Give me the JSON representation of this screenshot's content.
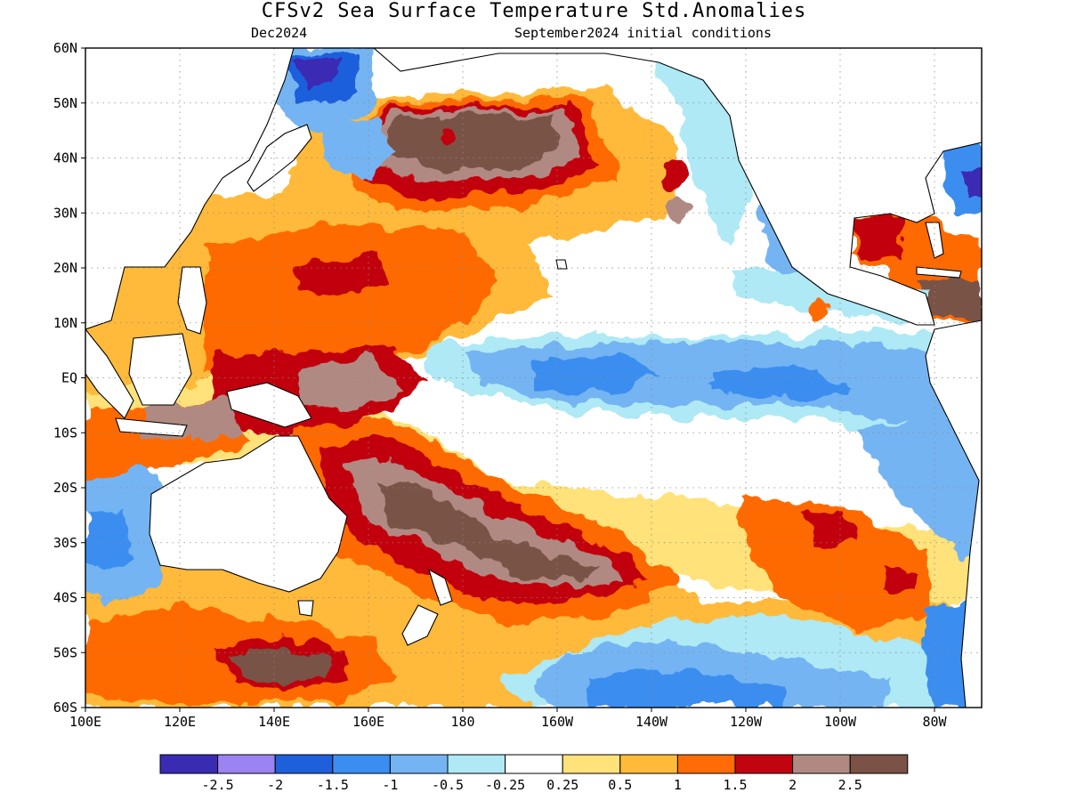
{
  "title": "CFSv2 Sea Surface Temperature Std.Anomalies",
  "subtitle_left": "Dec2024",
  "subtitle_right": "September2024 initial conditions",
  "map": {
    "lon_range": [
      100,
      290
    ],
    "lat_range": [
      -60,
      60
    ],
    "lat_ticks": [
      {
        "value": 60,
        "label": "60N"
      },
      {
        "value": 50,
        "label": "50N"
      },
      {
        "value": 40,
        "label": "40N"
      },
      {
        "value": 30,
        "label": "30N"
      },
      {
        "value": 20,
        "label": "20N"
      },
      {
        "value": 10,
        "label": "10N"
      },
      {
        "value": 0,
        "label": "EQ"
      },
      {
        "value": -10,
        "label": "10S"
      },
      {
        "value": -20,
        "label": "20S"
      },
      {
        "value": -30,
        "label": "30S"
      },
      {
        "value": -40,
        "label": "40S"
      },
      {
        "value": -50,
        "label": "50S"
      },
      {
        "value": -60,
        "label": "60S"
      }
    ],
    "lon_ticks": [
      {
        "value": 100,
        "label": "100E"
      },
      {
        "value": 120,
        "label": "120E"
      },
      {
        "value": 140,
        "label": "140E"
      },
      {
        "value": 160,
        "label": "160E"
      },
      {
        "value": 180,
        "label": "180"
      },
      {
        "value": 200,
        "label": "160W"
      },
      {
        "value": 220,
        "label": "140W"
      },
      {
        "value": 240,
        "label": "120W"
      },
      {
        "value": 260,
        "label": "100W"
      },
      {
        "value": 280,
        "label": "80W"
      }
    ],
    "land_color": "#ffffff",
    "coast_color": "#000000"
  },
  "legend": {
    "colors": [
      "#3a2bb3",
      "#9b83f2",
      "#1e5fdc",
      "#3a8ef0",
      "#74b4f2",
      "#aee9f5",
      "#ffffff",
      "#ffe27a",
      "#ffba3a",
      "#ff6b05",
      "#c20410",
      "#b08a82",
      "#7a5246"
    ],
    "labels": [
      "-2.5",
      "-2",
      "-1.5",
      "-1",
      "-0.5",
      "-0.25",
      "0.25",
      "0.5",
      "1",
      "1.5",
      "2",
      "2.5"
    ]
  }
}
